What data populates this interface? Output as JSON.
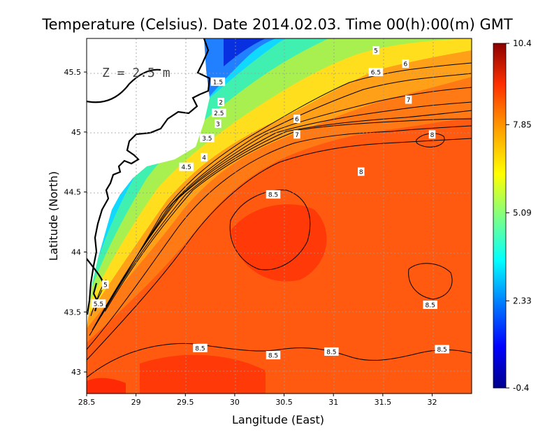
{
  "chart_data": {
    "type": "heatmap",
    "title": "Temperature (Celsius). Date 2014.02.03. Time 00(h):00(m)  GMT",
    "xlabel": "Langitude (East)",
    "ylabel": "Latitude (North)",
    "annotation": "Z = 2.5 m",
    "xlim": [
      28.5,
      32.4
    ],
    "ylim": [
      42.82,
      45.78
    ],
    "x_ticks": [
      "28.5",
      "29",
      "29.5",
      "30",
      "30.5",
      "31",
      "31.5",
      "32"
    ],
    "y_ticks": [
      "43",
      "43.5",
      "44",
      "44.5",
      "45",
      "45.5"
    ],
    "grid": true,
    "colorbar": {
      "min": -0.4,
      "max": 10.4,
      "tick_labels": [
        "10.4",
        "7.85",
        "5.09",
        "2.33",
        "-0.4"
      ],
      "colormap": [
        "#00008b",
        "#0000ff",
        "#0080ff",
        "#00ffff",
        "#80ff80",
        "#ffff00",
        "#ffa000",
        "#ff3000",
        "#8b0000"
      ]
    },
    "contour_labels": [
      {
        "text": "1.5",
        "lon": 29.83,
        "lat": 45.42
      },
      {
        "text": "2",
        "lon": 29.86,
        "lat": 45.25
      },
      {
        "text": "2.5",
        "lon": 29.84,
        "lat": 45.16
      },
      {
        "text": "3",
        "lon": 29.83,
        "lat": 45.07
      },
      {
        "text": "3.5",
        "lon": 29.72,
        "lat": 44.95
      },
      {
        "text": "4",
        "lon": 29.69,
        "lat": 44.79
      },
      {
        "text": "4.5",
        "lon": 29.51,
        "lat": 44.71
      },
      {
        "text": "5",
        "lon": 31.43,
        "lat": 45.68
      },
      {
        "text": "6",
        "lon": 31.73,
        "lat": 45.57
      },
      {
        "text": "6.5",
        "lon": 31.43,
        "lat": 45.5
      },
      {
        "text": "7",
        "lon": 31.76,
        "lat": 45.27
      },
      {
        "text": "6",
        "lon": 30.63,
        "lat": 45.11
      },
      {
        "text": "7",
        "lon": 30.63,
        "lat": 44.98
      },
      {
        "text": "8",
        "lon": 31.28,
        "lat": 44.67
      },
      {
        "text": "8",
        "lon": 32.0,
        "lat": 44.98
      },
      {
        "text": "8.5",
        "lon": 30.39,
        "lat": 44.48
      },
      {
        "text": "5",
        "lon": 28.69,
        "lat": 43.73
      },
      {
        "text": "5.5",
        "lon": 28.62,
        "lat": 43.57
      },
      {
        "text": "8.5",
        "lon": 31.98,
        "lat": 43.56
      },
      {
        "text": "8.5",
        "lon": 29.65,
        "lat": 43.2
      },
      {
        "text": "8.5",
        "lon": 30.39,
        "lat": 43.14
      },
      {
        "text": "8.5",
        "lon": 30.98,
        "lat": 43.17
      },
      {
        "text": "8.5",
        "lon": 32.1,
        "lat": 43.19
      }
    ]
  }
}
